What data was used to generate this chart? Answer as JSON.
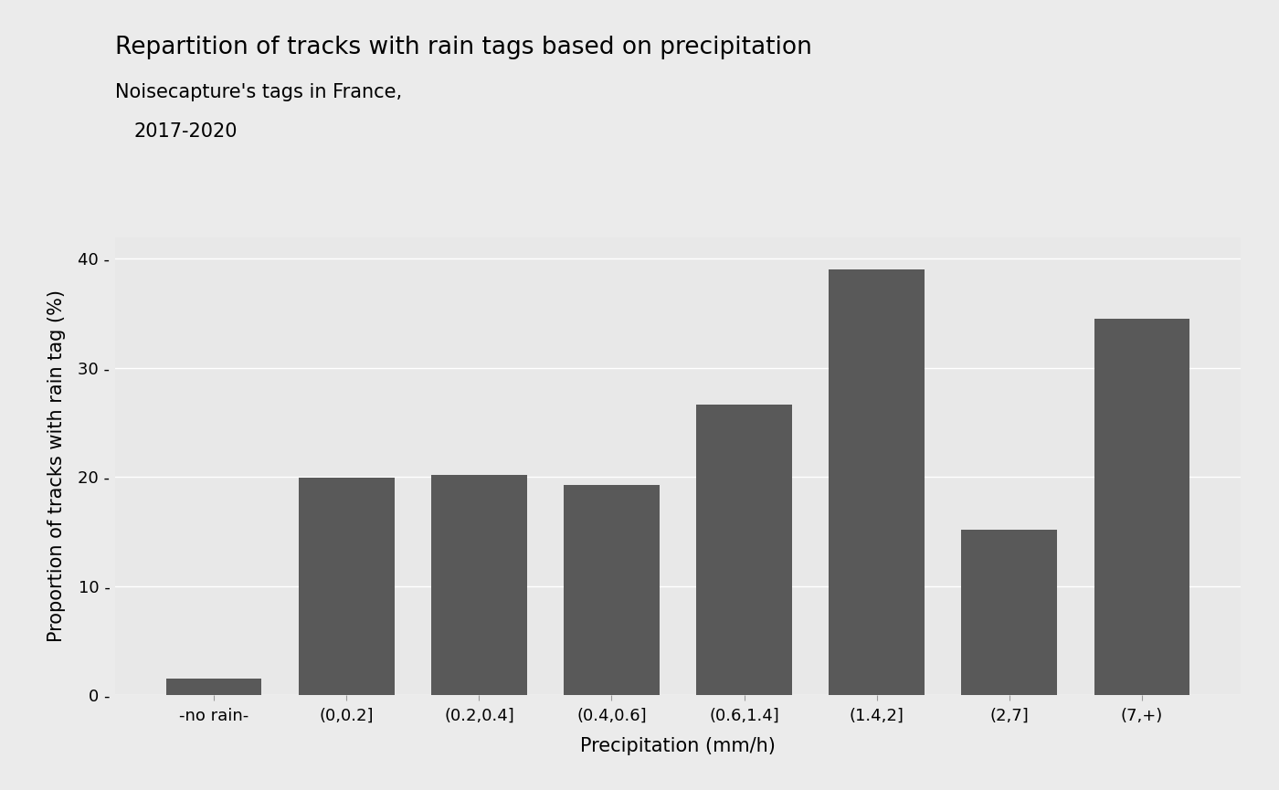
{
  "title": "Repartition of tracks with rain tags based on precipitation",
  "subtitle_line1": "Noisecapture's tags in France,",
  "subtitle_line2": "2017-2020",
  "xlabel": "Precipitation (mm/h)",
  "ylabel": "Proportion of tracks with rain tag (%)",
  "categories": [
    "-no rain-",
    "(0,0.2]",
    "(0.2,0.4]",
    "(0.4,0.6]",
    "(0.6,1.4]",
    "(1.4,2]",
    "(2,7]",
    "(7,+)"
  ],
  "values": [
    1.5,
    19.9,
    20.2,
    19.3,
    26.6,
    39.0,
    15.2,
    34.5
  ],
  "bar_color": "#595959",
  "background_color": "#ebebeb",
  "panel_color": "#e8e8e8",
  "ylim": [
    0,
    42
  ],
  "yticks": [
    0,
    10,
    20,
    30,
    40
  ],
  "title_fontsize": 19,
  "subtitle_fontsize": 15,
  "axis_label_fontsize": 15,
  "tick_fontsize": 13
}
